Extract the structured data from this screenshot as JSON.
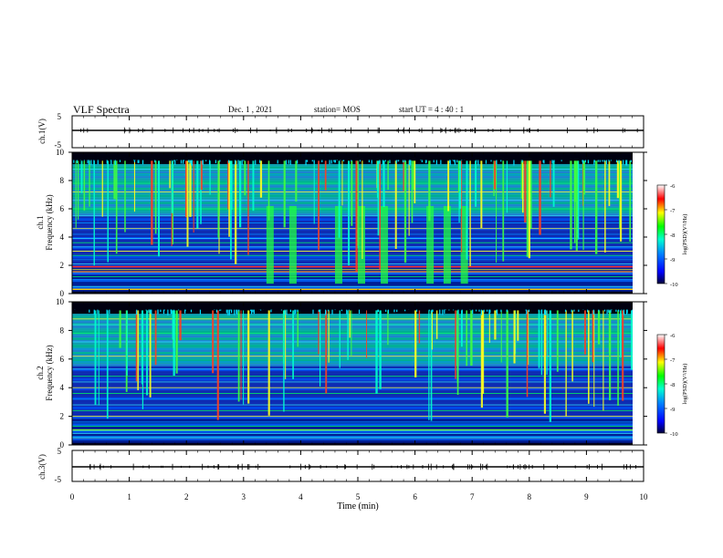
{
  "header": {
    "title": "VLF Spectra",
    "date": "Dec. 1 , 2021",
    "station": "station= MOS",
    "start_time": "start UT =  4 : 40 : 1"
  },
  "chart_data": [
    {
      "type": "line",
      "panel": "ch1-waveform",
      "ylabel": "ch.1(V)",
      "ylim": [
        -5,
        5
      ],
      "yticks": [
        "5",
        "-5"
      ],
      "xlim": [
        0,
        10
      ],
      "description_free": true
    },
    {
      "type": "heatmap",
      "panel": "ch1-spectrogram",
      "ylabel_top": "ch.1",
      "ylabel": "Frequency (kHz)",
      "ylim": [
        0,
        10
      ],
      "yticks": [
        "0",
        "2",
        "4",
        "6",
        "8",
        "10"
      ],
      "xlim": [
        0,
        10
      ],
      "colorbar": {
        "label": "log(PSD)(V²/Hz)",
        "ticks": [
          "-6",
          "-7",
          "-8",
          "-9",
          "-10"
        ],
        "range": [
          -10,
          -6
        ]
      }
    },
    {
      "type": "heatmap",
      "panel": "ch2-spectrogram",
      "ylabel_top": "ch.2",
      "ylabel": "Frequency (kHz)",
      "ylim": [
        0,
        10
      ],
      "yticks": [
        "0",
        "2",
        "4",
        "6",
        "8",
        "10"
      ],
      "xlim": [
        0,
        10
      ],
      "colorbar": {
        "label": "log(PSD)(V²/Hz)",
        "ticks": [
          "-6",
          "-7",
          "-8",
          "-9",
          "-10"
        ],
        "range": [
          -10,
          -6
        ]
      }
    },
    {
      "type": "line",
      "panel": "ch3-waveform",
      "ylabel": "ch.3(V)",
      "ylim": [
        -5,
        5
      ],
      "yticks": [
        "5",
        "-5"
      ],
      "xlim": [
        0,
        10
      ]
    }
  ],
  "xaxis": {
    "label": "Time (min)",
    "ticks": [
      "0",
      "1",
      "2",
      "3",
      "4",
      "5",
      "6",
      "7",
      "8",
      "9",
      "10"
    ]
  },
  "colors": {
    "cmap": [
      "#00003a",
      "#0000ff",
      "#00a0ff",
      "#00ffc0",
      "#00ff00",
      "#ffff00",
      "#ff0000",
      "#ffffff"
    ]
  }
}
